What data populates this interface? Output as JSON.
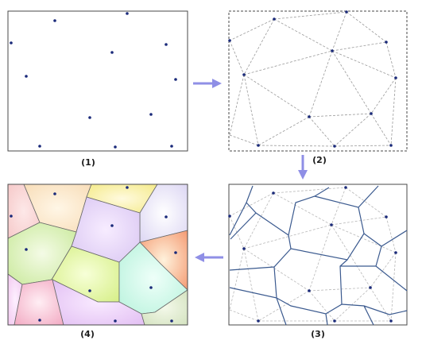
{
  "captions": {
    "p1": "(1)",
    "p2": "(2)",
    "p3": "(3)",
    "p4": "(4)"
  },
  "colors": {
    "point": "#1a2a7a",
    "voronoi_edge": "#3b5a8f",
    "triangulation_edge": "#9a9a9a",
    "arrow": "#8f8fe6"
  }
}
